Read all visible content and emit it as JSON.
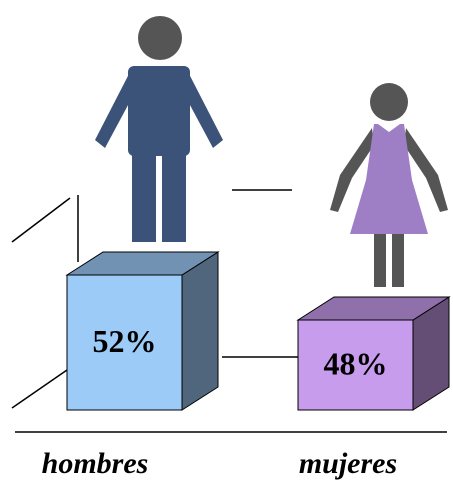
{
  "chart_data": {
    "type": "bar",
    "categories": [
      "hombres",
      "mujeres"
    ],
    "values": [
      52,
      48
    ],
    "value_labels": [
      "52%",
      "48%"
    ],
    "colors": [
      "#9dcbf7",
      "#c79cec"
    ]
  }
}
